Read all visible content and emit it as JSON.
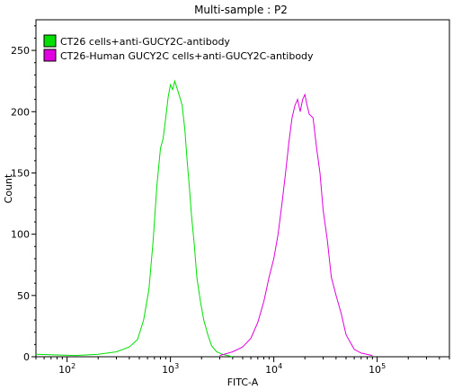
{
  "chart_data": {
    "type": "line",
    "title": "Multi-sample : P2",
    "xlabel": "FITC-A",
    "ylabel": "Count",
    "x_scale": "log",
    "xlim": [
      50,
      500000
    ],
    "ylim": [
      0,
      275
    ],
    "x_ticks": [
      {
        "value": 100,
        "base": "10",
        "exp": "2"
      },
      {
        "value": 1000,
        "base": "10",
        "exp": "3"
      },
      {
        "value": 10000,
        "base": "10",
        "exp": "4"
      },
      {
        "value": 100000,
        "base": "10",
        "exp": "5"
      }
    ],
    "y_ticks": [
      0,
      50,
      100,
      150,
      200,
      250
    ],
    "legend_position": "top-left",
    "grid": false,
    "series": [
      {
        "name": "CT26 cells+anti-GUCY2C-antibody",
        "color": "#00e000",
        "x": [
          50,
          120,
          200,
          300,
          400,
          480,
          550,
          620,
          680,
          740,
          800,
          850,
          900,
          950,
          1000,
          1050,
          1100,
          1150,
          1200,
          1250,
          1300,
          1380,
          1450,
          1520,
          1600,
          1700,
          1800,
          1950,
          2100,
          2300,
          2500,
          2800,
          3200,
          4000
        ],
        "y": [
          2,
          1,
          2,
          4,
          8,
          14,
          30,
          55,
          95,
          140,
          170,
          178,
          195,
          212,
          222,
          218,
          225,
          220,
          215,
          210,
          205,
          185,
          160,
          140,
          115,
          92,
          65,
          45,
          30,
          18,
          9,
          4,
          2,
          0
        ]
      },
      {
        "name": "CT26-Human GUCY2C cells+anti-GUCY2C-antibody",
        "color": "#e000e0",
        "x": [
          3000,
          4000,
          5000,
          6000,
          7000,
          8000,
          9000,
          10000,
          11000,
          12000,
          13000,
          14000,
          15000,
          16000,
          17000,
          18000,
          19000,
          20000,
          21000,
          22000,
          24000,
          26000,
          28000,
          30000,
          33000,
          36000,
          40000,
          45000,
          50000,
          60000,
          70000,
          90000
        ],
        "y": [
          1,
          4,
          8,
          15,
          28,
          45,
          65,
          80,
          100,
          125,
          150,
          175,
          195,
          205,
          210,
          200,
          210,
          214,
          205,
          198,
          195,
          170,
          150,
          120,
          95,
          65,
          50,
          35,
          18,
          6,
          3,
          1
        ]
      }
    ]
  }
}
